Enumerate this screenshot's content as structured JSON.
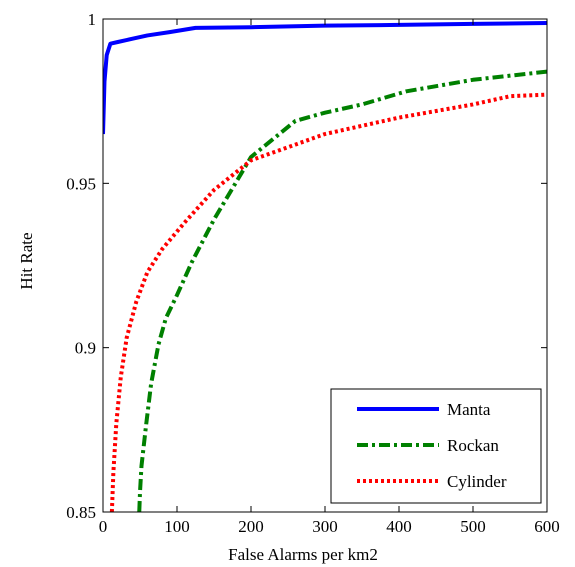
{
  "chart_data": {
    "type": "line",
    "title": "",
    "xlabel": "False Alarms per km2",
    "ylabel": "Hit Rate",
    "xlim": [
      0,
      600
    ],
    "ylim": [
      0.85,
      1
    ],
    "xticks": [
      "0",
      "100",
      "200",
      "300",
      "400",
      "500",
      "600"
    ],
    "yticks": [
      "0.85",
      "0.9",
      "0.95",
      "1"
    ],
    "grid": false,
    "legend_position": "bottom-right",
    "series": [
      {
        "name": "Manta",
        "color": "#0000ff",
        "style": "solid",
        "x": [
          0,
          2,
          5,
          10,
          20,
          40,
          60,
          90,
          125,
          200,
          300,
          400,
          500,
          600
        ],
        "y": [
          0.965,
          0.981,
          0.989,
          0.9925,
          0.993,
          0.994,
          0.995,
          0.996,
          0.9973,
          0.9975,
          0.998,
          0.9982,
          0.9985,
          0.9988
        ]
      },
      {
        "name": "Rockan",
        "color": "#008000",
        "style": "dashdot",
        "x": [
          49,
          50,
          52,
          58,
          65,
          75,
          85,
          100,
          120,
          150,
          200,
          260,
          300,
          350,
          410,
          500,
          600
        ],
        "y": [
          0.85,
          0.856,
          0.864,
          0.876,
          0.889,
          0.901,
          0.909,
          0.916,
          0.926,
          0.939,
          0.958,
          0.969,
          0.9715,
          0.974,
          0.978,
          0.9815,
          0.984
        ]
      },
      {
        "name": "Cylinder",
        "color": "#ff0000",
        "style": "dotted",
        "x": [
          12,
          14,
          18,
          24,
          32,
          45,
          60,
          80,
          110,
          150,
          200,
          250,
          300,
          400,
          500,
          550,
          600
        ],
        "y": [
          0.85,
          0.862,
          0.877,
          0.891,
          0.903,
          0.914,
          0.923,
          0.93,
          0.938,
          0.948,
          0.957,
          0.961,
          0.965,
          0.97,
          0.974,
          0.9765,
          0.977
        ]
      }
    ]
  }
}
